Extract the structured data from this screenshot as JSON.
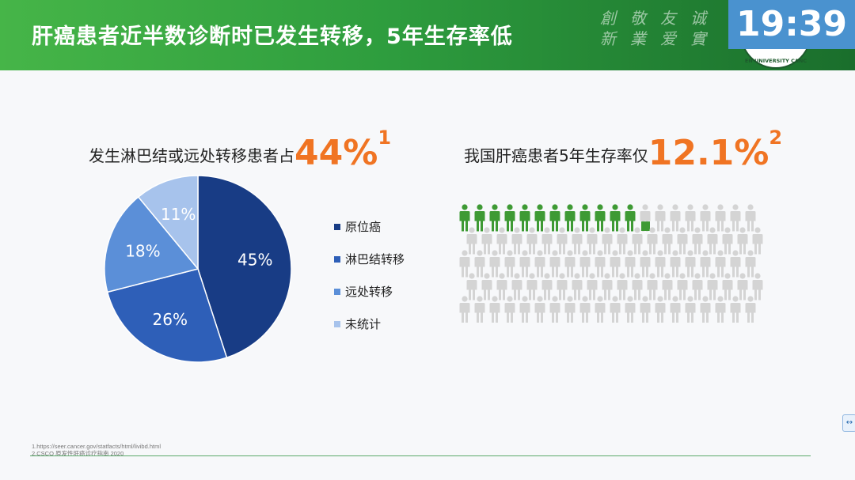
{
  "header": {
    "title": "肝癌患者近半数诊断时已发生转移，5年生存率低",
    "motto": [
      "創",
      "新",
      "敬",
      "業",
      "友",
      "爱",
      "诚",
      "實"
    ],
    "clock": "19:39",
    "seal_text": "EN UNIVERSITY CANC"
  },
  "left": {
    "subtitle": "发生淋巴结或远处转移患者占",
    "highlight": "44%",
    "footnote_ref": "1"
  },
  "right": {
    "subtitle": "我国肝癌患者5年生存率仅",
    "highlight": "12.1%",
    "footnote_ref": "2"
  },
  "chart_data": [
    {
      "type": "pie",
      "categories": [
        "原位癌",
        "淋巴结转移",
        "远处转移",
        "未统计"
      ],
      "values": [
        45,
        26,
        18,
        11
      ],
      "labels": [
        "45%",
        "26%",
        "18%",
        "11%"
      ],
      "colors": [
        "#183c85",
        "#2e5fb8",
        "#5b8fd8",
        "#a7c3ec"
      ],
      "legend_position": "right"
    },
    {
      "type": "pictogram",
      "total": 100,
      "highlighted": 12.1,
      "rows": 5,
      "per_row": 20,
      "colors": {
        "highlight": "#3e9a34",
        "rest": "#d4d4d4"
      }
    }
  ],
  "footnotes": [
    "1.https://seer.cancer.gov/statfacts/html/livibd.html",
    "2.CSCO 原发性肝癌诊疗指南 2020"
  ],
  "edge_icon": "↔"
}
